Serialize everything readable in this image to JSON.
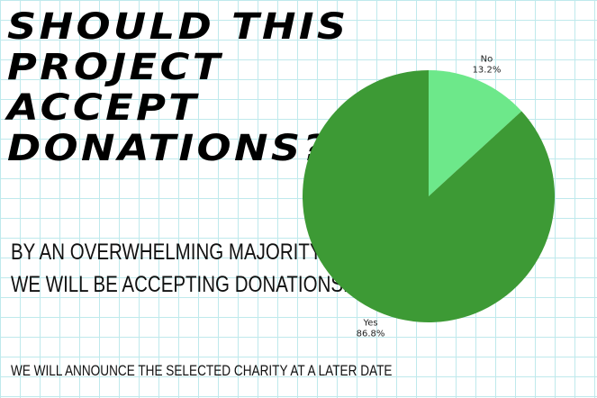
{
  "chart_data": {
    "type": "pie",
    "title": [
      "SHOULD THIS",
      "PROJECT",
      "ACCEPT",
      "DONATIONS?"
    ],
    "subtitle": [
      "BY AN OVERWHELMING MAJORITY,",
      "WE WILL BE ACCEPTING DONATIONS!"
    ],
    "annotation": "WE WILL ANNOUNCE THE SELECTED CHARITY AT A LATER DATE",
    "categories": [
      "No",
      "Yes"
    ],
    "values": [
      13.2,
      86.8
    ],
    "value_labels": [
      "13.2%",
      "86.8%"
    ],
    "colors": [
      "#6de88a",
      "#3d9a35"
    ]
  }
}
